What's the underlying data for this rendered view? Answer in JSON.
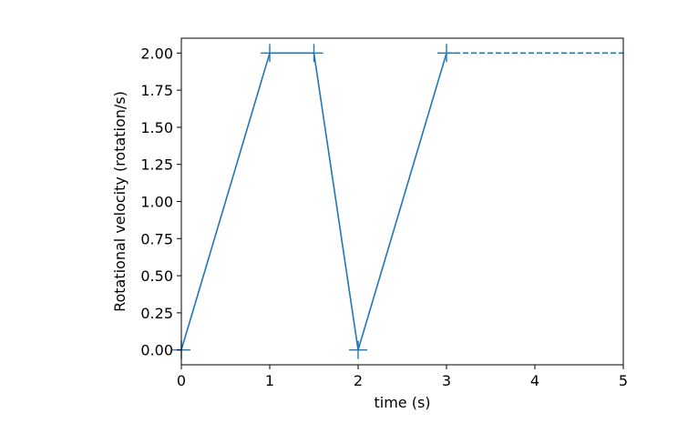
{
  "chart_data": {
    "type": "line",
    "title": "",
    "xlabel": "time (s)",
    "ylabel": "Rotational velocity (rotation/s)",
    "xlim": [
      0,
      5
    ],
    "ylim": [
      -0.1,
      2.1
    ],
    "xticks": [
      "0",
      "1",
      "2",
      "3",
      "4",
      "5"
    ],
    "yticks": [
      "0.00",
      "0.25",
      "0.50",
      "0.75",
      "1.00",
      "1.25",
      "1.50",
      "1.75",
      "2.00"
    ],
    "grid": false,
    "series": [
      {
        "style": "solid-with-plus-markers",
        "color": "#1f77b4",
        "x": [
          0,
          1,
          1.5,
          2,
          3
        ],
        "y": [
          0,
          2,
          2,
          0,
          2
        ]
      },
      {
        "style": "dashed",
        "color": "#1f77b4",
        "x": [
          3,
          5
        ],
        "y": [
          2,
          2
        ]
      }
    ]
  }
}
